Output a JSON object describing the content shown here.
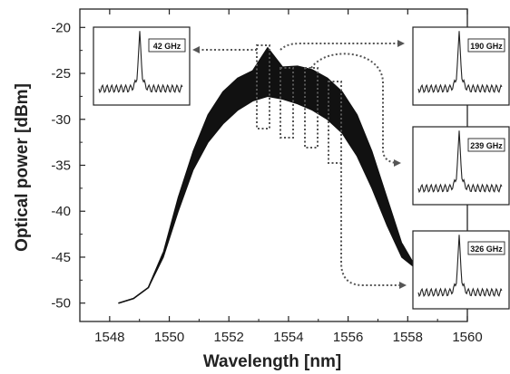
{
  "chart_data": {
    "type": "line",
    "xlabel": "Wavelength [nm]",
    "ylabel": "Optical power [dBm]",
    "xlim": [
      1547,
      1560
    ],
    "ylim": [
      -52,
      -18
    ],
    "x_ticks": [
      1548,
      1550,
      1552,
      1554,
      1556,
      1558,
      1560
    ],
    "y_ticks": [
      -20,
      -25,
      -30,
      -35,
      -40,
      -45,
      -50
    ],
    "spectrum_upper": {
      "x": [
        1548.3,
        1548.8,
        1549.3,
        1549.8,
        1550.3,
        1550.8,
        1551.3,
        1551.8,
        1552.3,
        1552.8,
        1553.3,
        1553.8,
        1554.3,
        1554.8,
        1555.3,
        1555.8,
        1556.3,
        1556.8,
        1557.3,
        1557.8,
        1558.3,
        1558.7
      ],
      "y": [
        -50,
        -49.5,
        -48.3,
        -44.5,
        -38.5,
        -33.5,
        -29.5,
        -27.0,
        -25.5,
        -24.7,
        -22.2,
        -24.3,
        -24.2,
        -24.6,
        -25.5,
        -27.0,
        -29.5,
        -33.5,
        -38.5,
        -43.5,
        -46.3,
        -47.0
      ]
    },
    "spectrum_lower": {
      "x": [
        1548.3,
        1548.8,
        1549.3,
        1549.8,
        1550.3,
        1550.8,
        1551.3,
        1551.8,
        1552.3,
        1552.8,
        1553.3,
        1553.8,
        1554.3,
        1554.8,
        1555.3,
        1555.8,
        1556.3,
        1556.8,
        1557.3,
        1557.8,
        1558.3,
        1558.7
      ],
      "y": [
        -50,
        -49.5,
        -48.3,
        -45.0,
        -40.0,
        -35.5,
        -32.5,
        -30.5,
        -29.0,
        -28.0,
        -27.5,
        -27.8,
        -28.3,
        -29.0,
        -30.0,
        -31.5,
        -34.0,
        -37.5,
        -41.5,
        -45.0,
        -46.3,
        -47.0
      ]
    },
    "insets": [
      {
        "label": "42 GHz"
      },
      {
        "label": "190 GHz"
      },
      {
        "label": "239 GHz"
      },
      {
        "label": "326 GHz"
      }
    ]
  }
}
